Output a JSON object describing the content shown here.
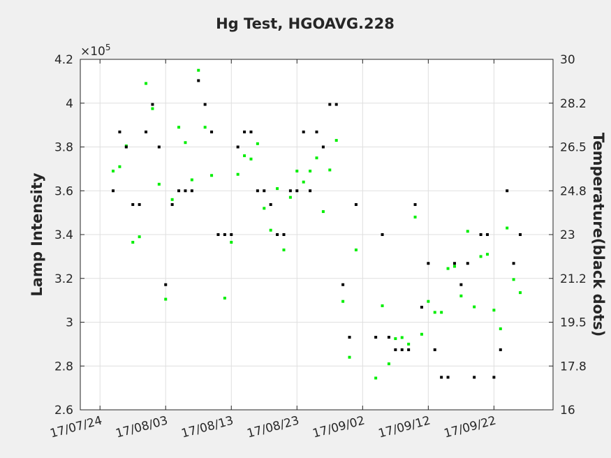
{
  "chart_data": {
    "type": "scatter",
    "title": "Hg Test, HGOAVG.228",
    "ylabel_left": "Lamp Intensity",
    "ylabel_right": "Temperature(black dots)",
    "multiplier": "×10",
    "multiplier_exp": "5",
    "x_axis": {
      "type": "date",
      "range": [
        "2017-07-21",
        "2017-10-01"
      ],
      "tick_labels": [
        "17/07/24",
        "17/08/03",
        "17/08/13",
        "17/08/23",
        "17/09/02",
        "17/09/12",
        "17/09/22"
      ],
      "tick_dates": [
        "2017-07-24",
        "2017-08-03",
        "2017-08-13",
        "2017-08-23",
        "2017-09-02",
        "2017-09-12",
        "2017-09-22"
      ]
    },
    "y_left": {
      "range": [
        260000,
        420000
      ],
      "tick_values": [
        260000,
        280000,
        300000,
        320000,
        340000,
        360000,
        380000,
        400000,
        420000
      ],
      "tick_labels": [
        "2.6",
        "2.8",
        "3",
        "3.2",
        "3.4",
        "3.6",
        "3.8",
        "4",
        "4.2"
      ]
    },
    "y_right": {
      "range": [
        16,
        30
      ],
      "tick_values": [
        16,
        17.75,
        19.5,
        21.25,
        23,
        24.75,
        26.5,
        28.25,
        30
      ],
      "tick_labels": [
        "16",
        "17.8",
        "19.5",
        "21.2",
        "23",
        "24.8",
        "26.5",
        "28.2",
        "30"
      ]
    },
    "grid": true,
    "series": [
      {
        "color": "#00ee00",
        "axis": "left",
        "points": [
          [
            "2017-07-26",
            369000
          ],
          [
            "2017-07-27",
            371000
          ],
          [
            "2017-07-28",
            380500
          ],
          [
            "2017-07-29",
            336500
          ],
          [
            "2017-07-30",
            339000
          ],
          [
            "2017-07-31",
            409000
          ],
          [
            "2017-08-01",
            397500
          ],
          [
            "2017-08-02",
            363000
          ],
          [
            "2017-08-03",
            310500
          ],
          [
            "2017-08-04",
            356000
          ],
          [
            "2017-08-05",
            389000
          ],
          [
            "2017-08-06",
            382000
          ],
          [
            "2017-08-07",
            365000
          ],
          [
            "2017-08-08",
            415000
          ],
          [
            "2017-08-09",
            389000
          ],
          [
            "2017-08-10",
            367000
          ],
          [
            "2017-08-12",
            311000
          ],
          [
            "2017-08-13",
            336500
          ],
          [
            "2017-08-14",
            367500
          ],
          [
            "2017-08-15",
            376000
          ],
          [
            "2017-08-16",
            374500
          ],
          [
            "2017-08-17",
            381500
          ],
          [
            "2017-08-18",
            352000
          ],
          [
            "2017-08-19",
            342000
          ],
          [
            "2017-08-20",
            361000
          ],
          [
            "2017-08-21",
            333000
          ],
          [
            "2017-08-22",
            357000
          ],
          [
            "2017-08-23",
            369000
          ],
          [
            "2017-08-24",
            364000
          ],
          [
            "2017-08-25",
            369000
          ],
          [
            "2017-08-26",
            375000
          ],
          [
            "2017-08-27",
            350500
          ],
          [
            "2017-08-28",
            369500
          ],
          [
            "2017-08-29",
            383000
          ],
          [
            "2017-08-30",
            309500
          ],
          [
            "2017-08-31",
            284000
          ],
          [
            "2017-09-01",
            333000
          ],
          [
            "2017-09-04",
            274500
          ],
          [
            "2017-09-05",
            307500
          ],
          [
            "2017-09-06",
            281000
          ],
          [
            "2017-09-07",
            292500
          ],
          [
            "2017-09-08",
            293000
          ],
          [
            "2017-09-09",
            290000
          ],
          [
            "2017-09-10",
            348000
          ],
          [
            "2017-09-11",
            294500
          ],
          [
            "2017-09-12",
            309500
          ],
          [
            "2017-09-13",
            304500
          ],
          [
            "2017-09-14",
            304500
          ],
          [
            "2017-09-15",
            324500
          ],
          [
            "2017-09-16",
            325500
          ],
          [
            "2017-09-17",
            312000
          ],
          [
            "2017-09-18",
            341500
          ],
          [
            "2017-09-19",
            307000
          ],
          [
            "2017-09-20",
            330000
          ],
          [
            "2017-09-21",
            331000
          ],
          [
            "2017-09-22",
            305500
          ],
          [
            "2017-09-23",
            297000
          ],
          [
            "2017-09-24",
            343000
          ],
          [
            "2017-09-25",
            319500
          ],
          [
            "2017-09-26",
            313500
          ]
        ]
      },
      {
        "color": "#000000",
        "axis": "right",
        "points": [
          [
            "2017-07-26",
            24.75
          ],
          [
            "2017-07-27",
            27.1
          ],
          [
            "2017-07-28",
            26.5
          ],
          [
            "2017-07-29",
            24.2
          ],
          [
            "2017-07-30",
            24.2
          ],
          [
            "2017-07-31",
            27.1
          ],
          [
            "2017-08-01",
            28.2
          ],
          [
            "2017-08-02",
            26.5
          ],
          [
            "2017-08-03",
            21.0
          ],
          [
            "2017-08-04",
            24.2
          ],
          [
            "2017-08-05",
            24.75
          ],
          [
            "2017-08-06",
            24.75
          ],
          [
            "2017-08-07",
            24.75
          ],
          [
            "2017-08-08",
            29.15
          ],
          [
            "2017-08-09",
            28.2
          ],
          [
            "2017-08-10",
            27.1
          ],
          [
            "2017-08-11",
            23.0
          ],
          [
            "2017-08-12",
            23.0
          ],
          [
            "2017-08-13",
            23.0
          ],
          [
            "2017-08-14",
            26.5
          ],
          [
            "2017-08-15",
            27.1
          ],
          [
            "2017-08-16",
            27.1
          ],
          [
            "2017-08-17",
            24.75
          ],
          [
            "2017-08-18",
            24.75
          ],
          [
            "2017-08-19",
            24.2
          ],
          [
            "2017-08-20",
            23.0
          ],
          [
            "2017-08-21",
            23.0
          ],
          [
            "2017-08-22",
            24.75
          ],
          [
            "2017-08-23",
            24.75
          ],
          [
            "2017-08-24",
            27.1
          ],
          [
            "2017-08-25",
            24.75
          ],
          [
            "2017-08-26",
            27.1
          ],
          [
            "2017-08-27",
            26.5
          ],
          [
            "2017-08-28",
            28.2
          ],
          [
            "2017-08-29",
            28.2
          ],
          [
            "2017-08-30",
            21.0
          ],
          [
            "2017-08-31",
            18.9
          ],
          [
            "2017-09-01",
            24.2
          ],
          [
            "2017-09-04",
            18.9
          ],
          [
            "2017-09-05",
            23.0
          ],
          [
            "2017-09-06",
            18.9
          ],
          [
            "2017-09-07",
            18.4
          ],
          [
            "2017-09-08",
            18.4
          ],
          [
            "2017-09-09",
            18.4
          ],
          [
            "2017-09-10",
            24.2
          ],
          [
            "2017-09-11",
            20.1
          ],
          [
            "2017-09-12",
            21.85
          ],
          [
            "2017-09-13",
            18.4
          ],
          [
            "2017-09-14",
            17.3
          ],
          [
            "2017-09-15",
            17.3
          ],
          [
            "2017-09-16",
            21.85
          ],
          [
            "2017-09-17",
            21.0
          ],
          [
            "2017-09-18",
            21.85
          ],
          [
            "2017-09-19",
            17.3
          ],
          [
            "2017-09-20",
            23.0
          ],
          [
            "2017-09-21",
            23.0
          ],
          [
            "2017-09-22",
            17.3
          ],
          [
            "2017-09-23",
            18.4
          ],
          [
            "2017-09-24",
            24.75
          ],
          [
            "2017-09-25",
            21.85
          ],
          [
            "2017-09-26",
            23.0
          ]
        ]
      }
    ]
  }
}
